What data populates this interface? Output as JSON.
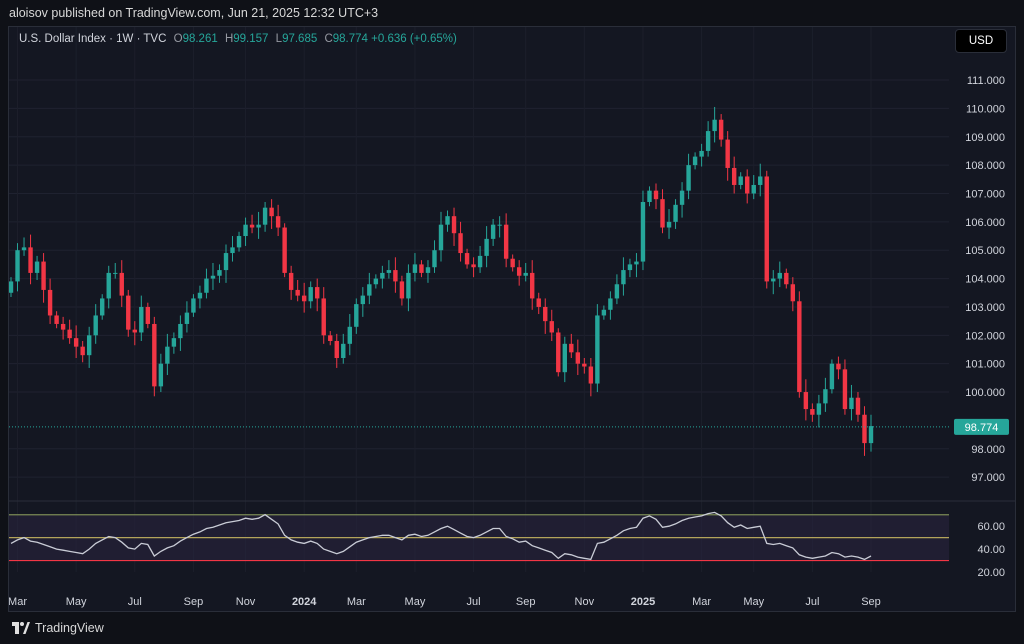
{
  "header": {
    "published": "aloisov published on TradingView.com, Jun 21, 2025 12:32 UTC+3"
  },
  "legend": {
    "symbol": "U.S. Dollar Index · 1W · TVC",
    "o_label": "O",
    "o": "98.261",
    "h_label": "H",
    "h": "99.157",
    "l_label": "L",
    "l": "97.685",
    "c_label": "C",
    "c": "98.774",
    "change": "+0.636 (+0.65%)"
  },
  "currency_button": "USD",
  "price_tag": "98.774",
  "footer": {
    "brand": "TradingView"
  },
  "colors": {
    "up": "#26a69a",
    "down": "#f23645",
    "background": "#141722",
    "rsi_line": "#c9ccd6",
    "rsi_band": "#2a2440",
    "rsi_upper": "#7a8a55",
    "rsi_lower": "#f23645",
    "rsi_mid": "#b3a45a"
  },
  "chart_data": [
    {
      "type": "candlestick",
      "title": "U.S. Dollar Index · 1W · TVC",
      "y_ticks": [
        "111.000",
        "110.000",
        "109.000",
        "108.000",
        "107.000",
        "106.000",
        "105.000",
        "104.000",
        "103.000",
        "102.000",
        "101.000",
        "100.000",
        "98.000",
        "97.000"
      ],
      "x_ticks": [
        "Mar",
        "May",
        "Jul",
        "Sep",
        "Nov",
        "2024",
        "Mar",
        "May",
        "Jul",
        "Sep",
        "Nov",
        "2025",
        "Mar",
        "May",
        "Jul",
        "Sep"
      ],
      "ylim": [
        96.3,
        111.6
      ],
      "last_close": 98.774,
      "closes": [
        103.9,
        105.0,
        105.1,
        104.2,
        104.6,
        103.6,
        102.7,
        102.4,
        102.2,
        101.9,
        101.6,
        101.3,
        102.0,
        102.7,
        103.3,
        104.2,
        104.2,
        103.4,
        102.2,
        102.1,
        103.0,
        102.4,
        100.2,
        101.0,
        101.6,
        101.9,
        102.4,
        102.8,
        103.3,
        103.5,
        104.0,
        104.1,
        104.3,
        104.9,
        105.1,
        105.5,
        105.9,
        105.8,
        105.9,
        106.5,
        106.2,
        105.8,
        104.2,
        103.6,
        103.4,
        103.2,
        103.7,
        103.3,
        102.0,
        101.8,
        101.2,
        101.7,
        102.3,
        103.1,
        103.4,
        103.8,
        104.0,
        104.2,
        104.3,
        103.9,
        103.3,
        104.2,
        104.5,
        104.2,
        104.4,
        105.0,
        105.9,
        106.2,
        105.6,
        104.9,
        104.5,
        104.4,
        104.8,
        105.4,
        105.9,
        105.9,
        104.7,
        104.4,
        104.1,
        104.2,
        103.3,
        103.0,
        102.5,
        102.1,
        100.7,
        101.7,
        101.4,
        101.0,
        100.9,
        100.3,
        102.7,
        102.9,
        103.3,
        103.8,
        104.3,
        104.5,
        104.6,
        106.7,
        107.1,
        106.8,
        105.8,
        106.0,
        106.6,
        107.1,
        108.0,
        108.3,
        108.5,
        109.2,
        109.6,
        108.9,
        107.9,
        107.3,
        107.6,
        107.0,
        107.3,
        107.6,
        103.9,
        104.0,
        104.2,
        103.8,
        103.2,
        100.0,
        99.4,
        99.2,
        99.6,
        100.1,
        101.0,
        100.8,
        99.4,
        99.8,
        99.2,
        98.2,
        98.8
      ]
    },
    {
      "type": "line",
      "title": "RSI",
      "y_ticks": [
        "60.00",
        "40.00",
        "20.00"
      ],
      "ylim": [
        20,
        75
      ],
      "upper": 70,
      "middle": 50,
      "lower": 30,
      "values": [
        45,
        48,
        50,
        47,
        46,
        44,
        42,
        40,
        39,
        38,
        37,
        36,
        40,
        45,
        48,
        51,
        50,
        46,
        41,
        40,
        45,
        44,
        34,
        38,
        41,
        43,
        47,
        50,
        53,
        55,
        58,
        59,
        61,
        63,
        64,
        65,
        67,
        66,
        67,
        70,
        66,
        62,
        52,
        48,
        46,
        45,
        47,
        45,
        40,
        38,
        36,
        38,
        42,
        46,
        48,
        50,
        51,
        52,
        52,
        50,
        48,
        52,
        53,
        51,
        52,
        55,
        58,
        60,
        57,
        54,
        51,
        50,
        52,
        55,
        58,
        58,
        51,
        49,
        46,
        47,
        43,
        41,
        39,
        37,
        32,
        36,
        35,
        33,
        32,
        31,
        45,
        46,
        49,
        52,
        56,
        58,
        59,
        67,
        69,
        66,
        59,
        60,
        62,
        65,
        67,
        68,
        69,
        71,
        72,
        69,
        63,
        59,
        61,
        58,
        59,
        60,
        45,
        44,
        45,
        43,
        41,
        35,
        33,
        32,
        33,
        34,
        37,
        36,
        33,
        34,
        33,
        31,
        34
      ]
    }
  ]
}
